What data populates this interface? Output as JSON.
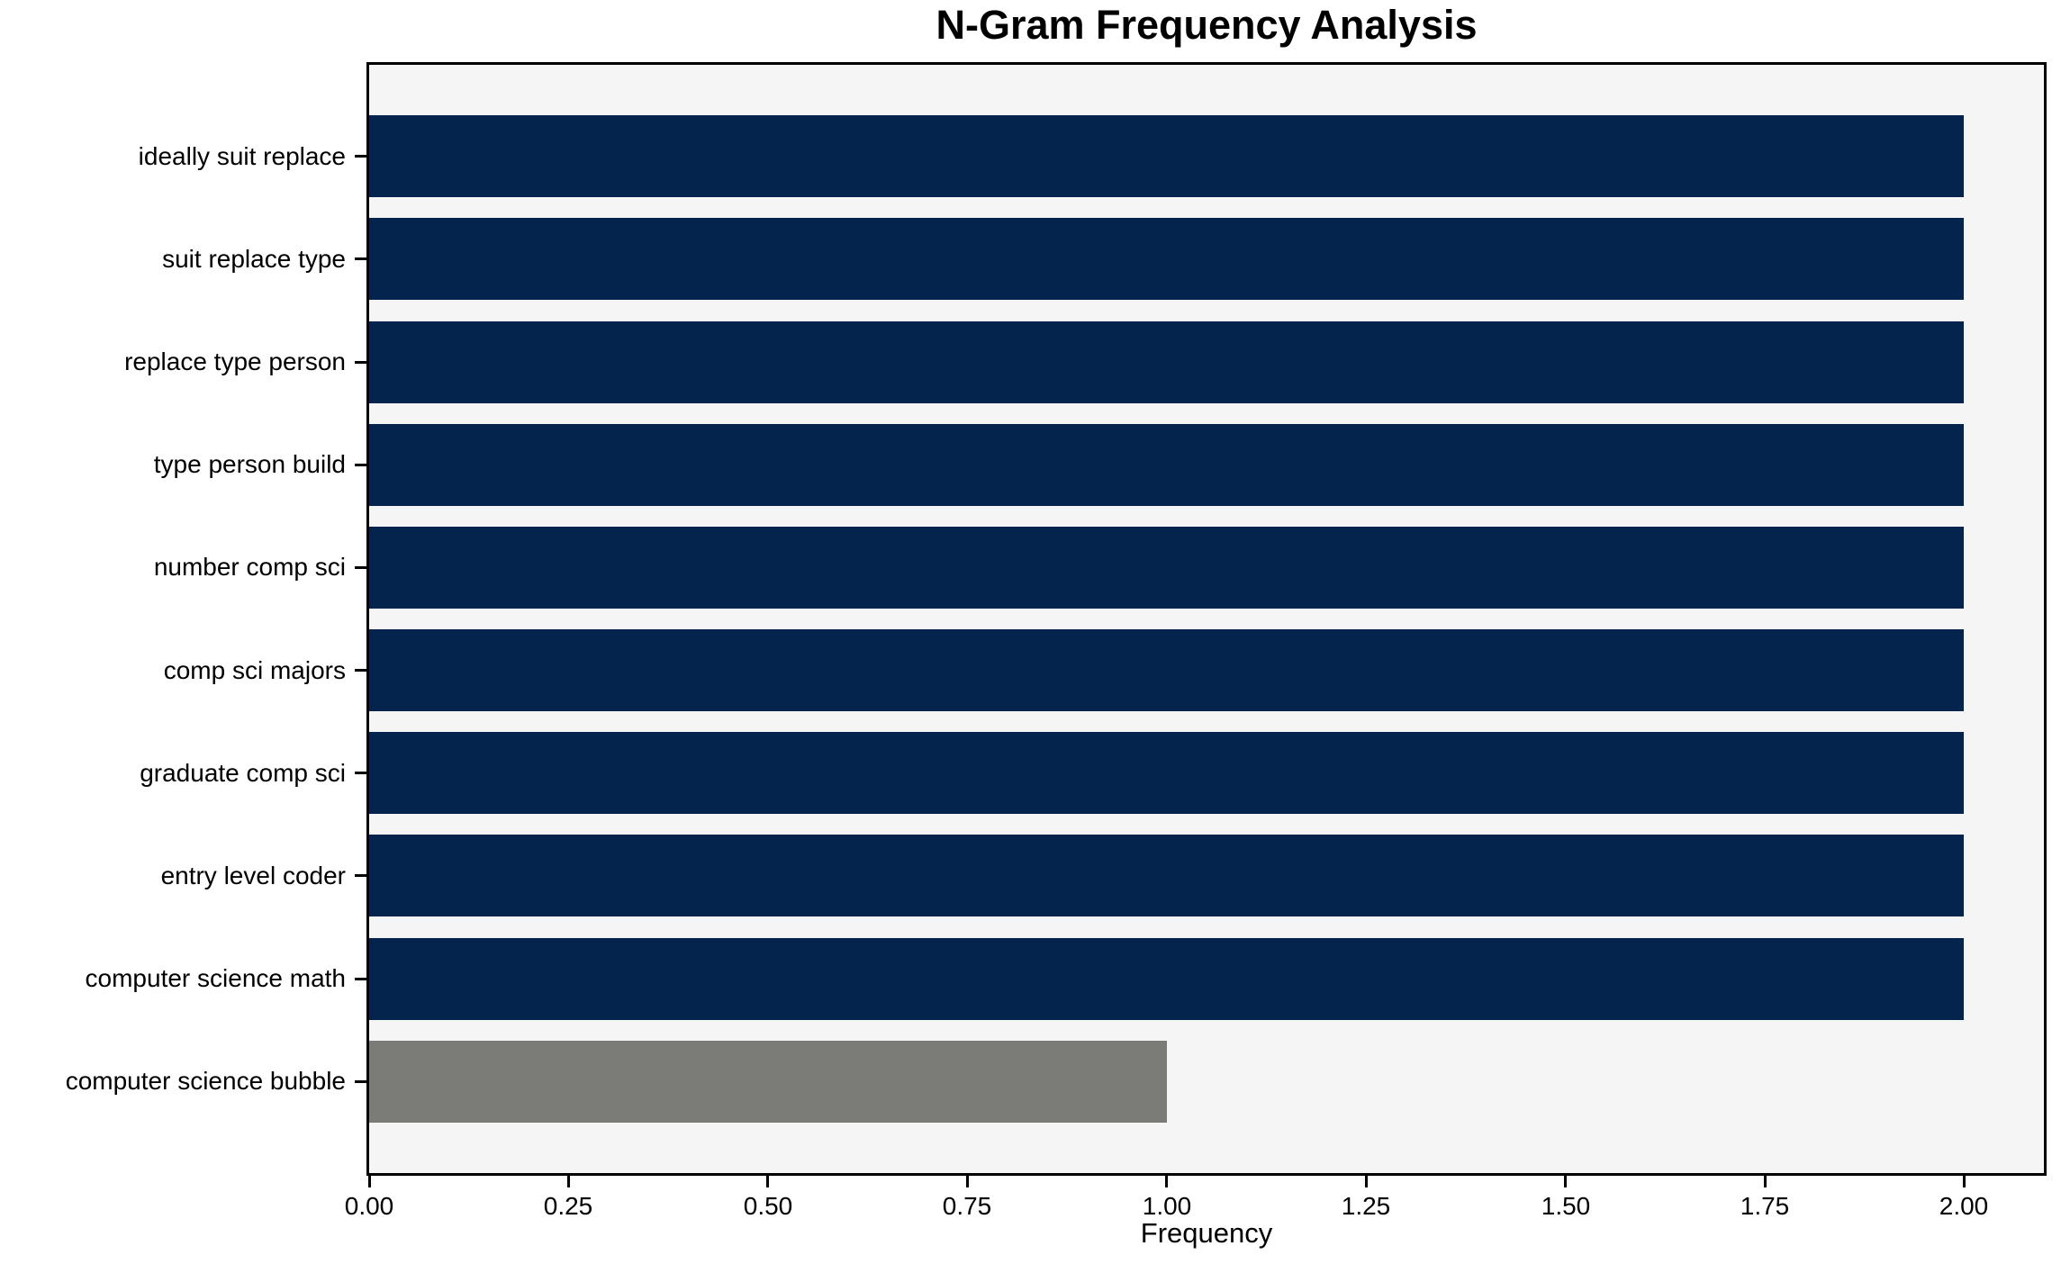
{
  "chart_data": {
    "type": "bar",
    "orientation": "horizontal",
    "title": "N-Gram Frequency Analysis",
    "xlabel": "Frequency",
    "ylabel": "",
    "categories": [
      "ideally suit replace",
      "suit replace type",
      "replace type person",
      "type person build",
      "number comp sci",
      "comp sci majors",
      "graduate comp sci",
      "entry level coder",
      "computer science math",
      "computer science bubble"
    ],
    "values": [
      2,
      2,
      2,
      2,
      2,
      2,
      2,
      2,
      2,
      1
    ],
    "bar_colors": [
      "#04234d",
      "#04234d",
      "#04234d",
      "#04234d",
      "#04234d",
      "#04234d",
      "#04234d",
      "#04234d",
      "#04234d",
      "#7b7b78"
    ],
    "xlim": [
      0,
      2.1
    ],
    "xticks": [
      0.0,
      0.25,
      0.5,
      0.75,
      1.0,
      1.25,
      1.5,
      1.75,
      2.0
    ],
    "xtick_format_decimals": 2,
    "grid": false,
    "legend": false,
    "colors": {
      "plot_background": "#f5f5f5",
      "figure_background": "#ffffff",
      "spine": "#000000",
      "text": "#000000",
      "bar_primary": "#04234d",
      "bar_highlight": "#7b7b78"
    }
  }
}
